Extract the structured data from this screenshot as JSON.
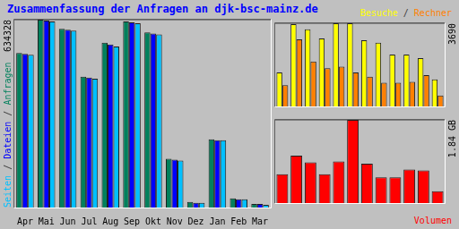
{
  "chart_data": [
    {
      "type": "bar",
      "title": "Zusammenfassung der Anfragen an djk-bsc-mainz.de",
      "y_label": "Seiten / Dateien / Anfragen",
      "categories": [
        "Apr",
        "Mai",
        "Jun",
        "Jul",
        "Aug",
        "Sep",
        "Okt",
        "Nov",
        "Dez",
        "Jan",
        "Feb",
        "Mar"
      ],
      "series": [
        {
          "name": "Anfragen",
          "color": "#00805c",
          "values": [
            522000,
            634328,
            603000,
            441500,
            556500,
            628000,
            591000,
            165000,
            18700,
            230000,
            31000,
            12400
          ]
        },
        {
          "name": "Dateien",
          "color": "#0000ff",
          "values": [
            519000,
            631000,
            600000,
            438500,
            550500,
            625000,
            587500,
            161500,
            15500,
            227000,
            28000,
            12400
          ]
        },
        {
          "name": "Seiten",
          "color": "#00c0ff",
          "values": [
            516000,
            628000,
            597000,
            435000,
            544000,
            622000,
            584500,
            158500,
            15500,
            227000,
            28000,
            9300
          ]
        }
      ],
      "ylim": [
        0,
        634328
      ],
      "yticks": [
        634328
      ],
      "grid": true
    },
    {
      "type": "bar",
      "title": "Besuche / Rechner",
      "categories": [
        "Apr",
        "Mai",
        "Jun",
        "Jul",
        "Aug",
        "Sep",
        "Okt",
        "Nov",
        "Dez",
        "Jan",
        "Feb",
        "Mar"
      ],
      "series": [
        {
          "name": "Besuche",
          "color": "#ffff00",
          "values": [
            1506,
            3652,
            3426,
            3012,
            3690,
            3690,
            2937,
            2824,
            2297,
            2297,
            2146,
            1205
          ]
        },
        {
          "name": "Rechner",
          "color": "#ff8000",
          "values": [
            941,
            2975,
            1996,
            1694,
            1770,
            1506,
            1318,
            1054,
            1054,
            1092,
            1393,
            490
          ]
        }
      ],
      "ylim": [
        0,
        3690
      ],
      "yticks": [
        3690
      ],
      "grid": true,
      "tick_labels": "y"
    },
    {
      "type": "bar",
      "title": "Volumen",
      "categories": [
        "Apr",
        "Mai",
        "Jun",
        "Jul",
        "Aug",
        "Sep",
        "Okt",
        "Nov",
        "Dez",
        "Jan",
        "Feb",
        "Mar"
      ],
      "series": [
        {
          "name": "Volumen",
          "color": "#ff0000",
          "values": [
            0.64,
            1.05,
            0.9,
            0.64,
            0.92,
            1.84,
            0.87,
            0.57,
            0.57,
            0.74,
            0.72,
            0.26
          ]
        }
      ],
      "ylim": [
        0,
        1.84
      ],
      "yticks": [
        {
          "value": 1.84,
          "label": "1.84 GB"
        }
      ],
      "grid": true,
      "tick_labels": "y"
    }
  ]
}
